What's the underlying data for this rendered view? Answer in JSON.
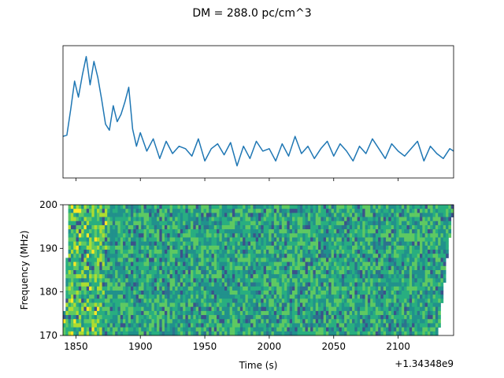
{
  "chart_data": [
    {
      "type": "line",
      "title": "DM = 288.0 pc/cm^3",
      "xlim": [
        1840,
        2143
      ],
      "x_ticks": [
        1850,
        1900,
        1950,
        2000,
        2050,
        2100
      ],
      "y_ticks_visible": false,
      "grid": false,
      "legend": "none",
      "series": [
        {
          "color": "#1f77b4",
          "x": [
            1840,
            1843,
            1846,
            1849,
            1852,
            1855,
            1858,
            1861,
            1864,
            1867,
            1870,
            1873,
            1876,
            1879,
            1882,
            1885,
            1888,
            1891,
            1894,
            1897,
            1900,
            1905,
            1910,
            1915,
            1920,
            1925,
            1930,
            1935,
            1940,
            1945,
            1950,
            1955,
            1960,
            1965,
            1970,
            1975,
            1980,
            1985,
            1990,
            1995,
            2000,
            2005,
            2010,
            2015,
            2020,
            2025,
            2030,
            2035,
            2040,
            2045,
            2050,
            2055,
            2060,
            2065,
            2070,
            2075,
            2080,
            2085,
            2090,
            2095,
            2100,
            2105,
            2110,
            2115,
            2120,
            2125,
            2130,
            2135,
            2140,
            2143
          ],
          "values": [
            0.3,
            0.31,
            0.52,
            0.75,
            0.62,
            0.8,
            0.95,
            0.72,
            0.91,
            0.78,
            0.6,
            0.4,
            0.35,
            0.55,
            0.42,
            0.48,
            0.58,
            0.7,
            0.36,
            0.22,
            0.33,
            0.18,
            0.28,
            0.12,
            0.26,
            0.16,
            0.22,
            0.2,
            0.14,
            0.28,
            0.1,
            0.2,
            0.24,
            0.15,
            0.25,
            0.06,
            0.22,
            0.12,
            0.26,
            0.18,
            0.2,
            0.1,
            0.24,
            0.14,
            0.3,
            0.16,
            0.22,
            0.12,
            0.2,
            0.26,
            0.14,
            0.24,
            0.18,
            0.1,
            0.22,
            0.16,
            0.28,
            0.2,
            0.12,
            0.24,
            0.18,
            0.14,
            0.2,
            0.26,
            0.1,
            0.22,
            0.16,
            0.12,
            0.2,
            0.18
          ]
        }
      ]
    },
    {
      "type": "heatmap",
      "xlabel": "Time (s)",
      "ylabel": "Frequency (MHz)",
      "x_offset_label": "+1.34348e9",
      "xlim": [
        1840,
        2143
      ],
      "ylim": [
        170,
        200
      ],
      "x_ticks": [
        1850,
        1900,
        1950,
        2000,
        2050,
        2100
      ],
      "y_ticks": [
        170,
        180,
        190,
        200
      ],
      "colormap": [
        "#3b528b",
        "#2c728e",
        "#21918c",
        "#28ae80",
        "#5ec962",
        "#addc30",
        "#fde725"
      ],
      "data_start_at_200MHz": 1845,
      "data_start_at_170MHz": 1840,
      "data_end_at_200MHz": 2143,
      "data_end_at_170MHz": 2131
    }
  ]
}
